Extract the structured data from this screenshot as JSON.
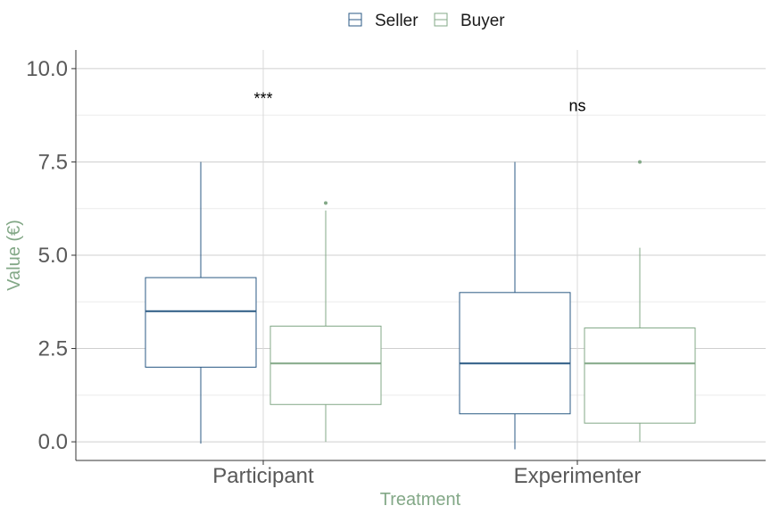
{
  "chart_data": {
    "type": "boxplot",
    "xlabel": "Treatment",
    "ylabel": "Value (€)",
    "categories": [
      "Participant",
      "Experimenter"
    ],
    "ylim": [
      -0.5,
      10.5
    ],
    "yticks": [
      0,
      2.5,
      5,
      7.5,
      10
    ],
    "ytick_labels": [
      "0.0",
      "2.5",
      "5.0",
      "7.5",
      "10.0"
    ],
    "grid": true,
    "legend_position": "top",
    "series": [
      {
        "name": "Seller",
        "color": "#2b5a84",
        "boxes": [
          {
            "min": -0.05,
            "q1": 2.0,
            "median": 3.5,
            "q3": 4.4,
            "max": 7.5,
            "outliers": []
          },
          {
            "min": -0.2,
            "q1": 0.75,
            "median": 2.1,
            "q3": 4.0,
            "max": 7.5,
            "outliers": []
          }
        ]
      },
      {
        "name": "Buyer",
        "color": "#83a887",
        "boxes": [
          {
            "min": 0.0,
            "q1": 1.0,
            "median": 2.1,
            "q3": 3.1,
            "max": 6.2,
            "outliers": [
              6.4
            ]
          },
          {
            "min": 0.0,
            "q1": 0.5,
            "median": 2.1,
            "q3": 3.05,
            "max": 5.2,
            "outliers": [
              7.5
            ]
          }
        ]
      }
    ],
    "annotations": [
      {
        "category": "Participant",
        "text": "***",
        "y": 9.2
      },
      {
        "category": "Experimenter",
        "text": "ns",
        "y": 9.0
      }
    ]
  }
}
